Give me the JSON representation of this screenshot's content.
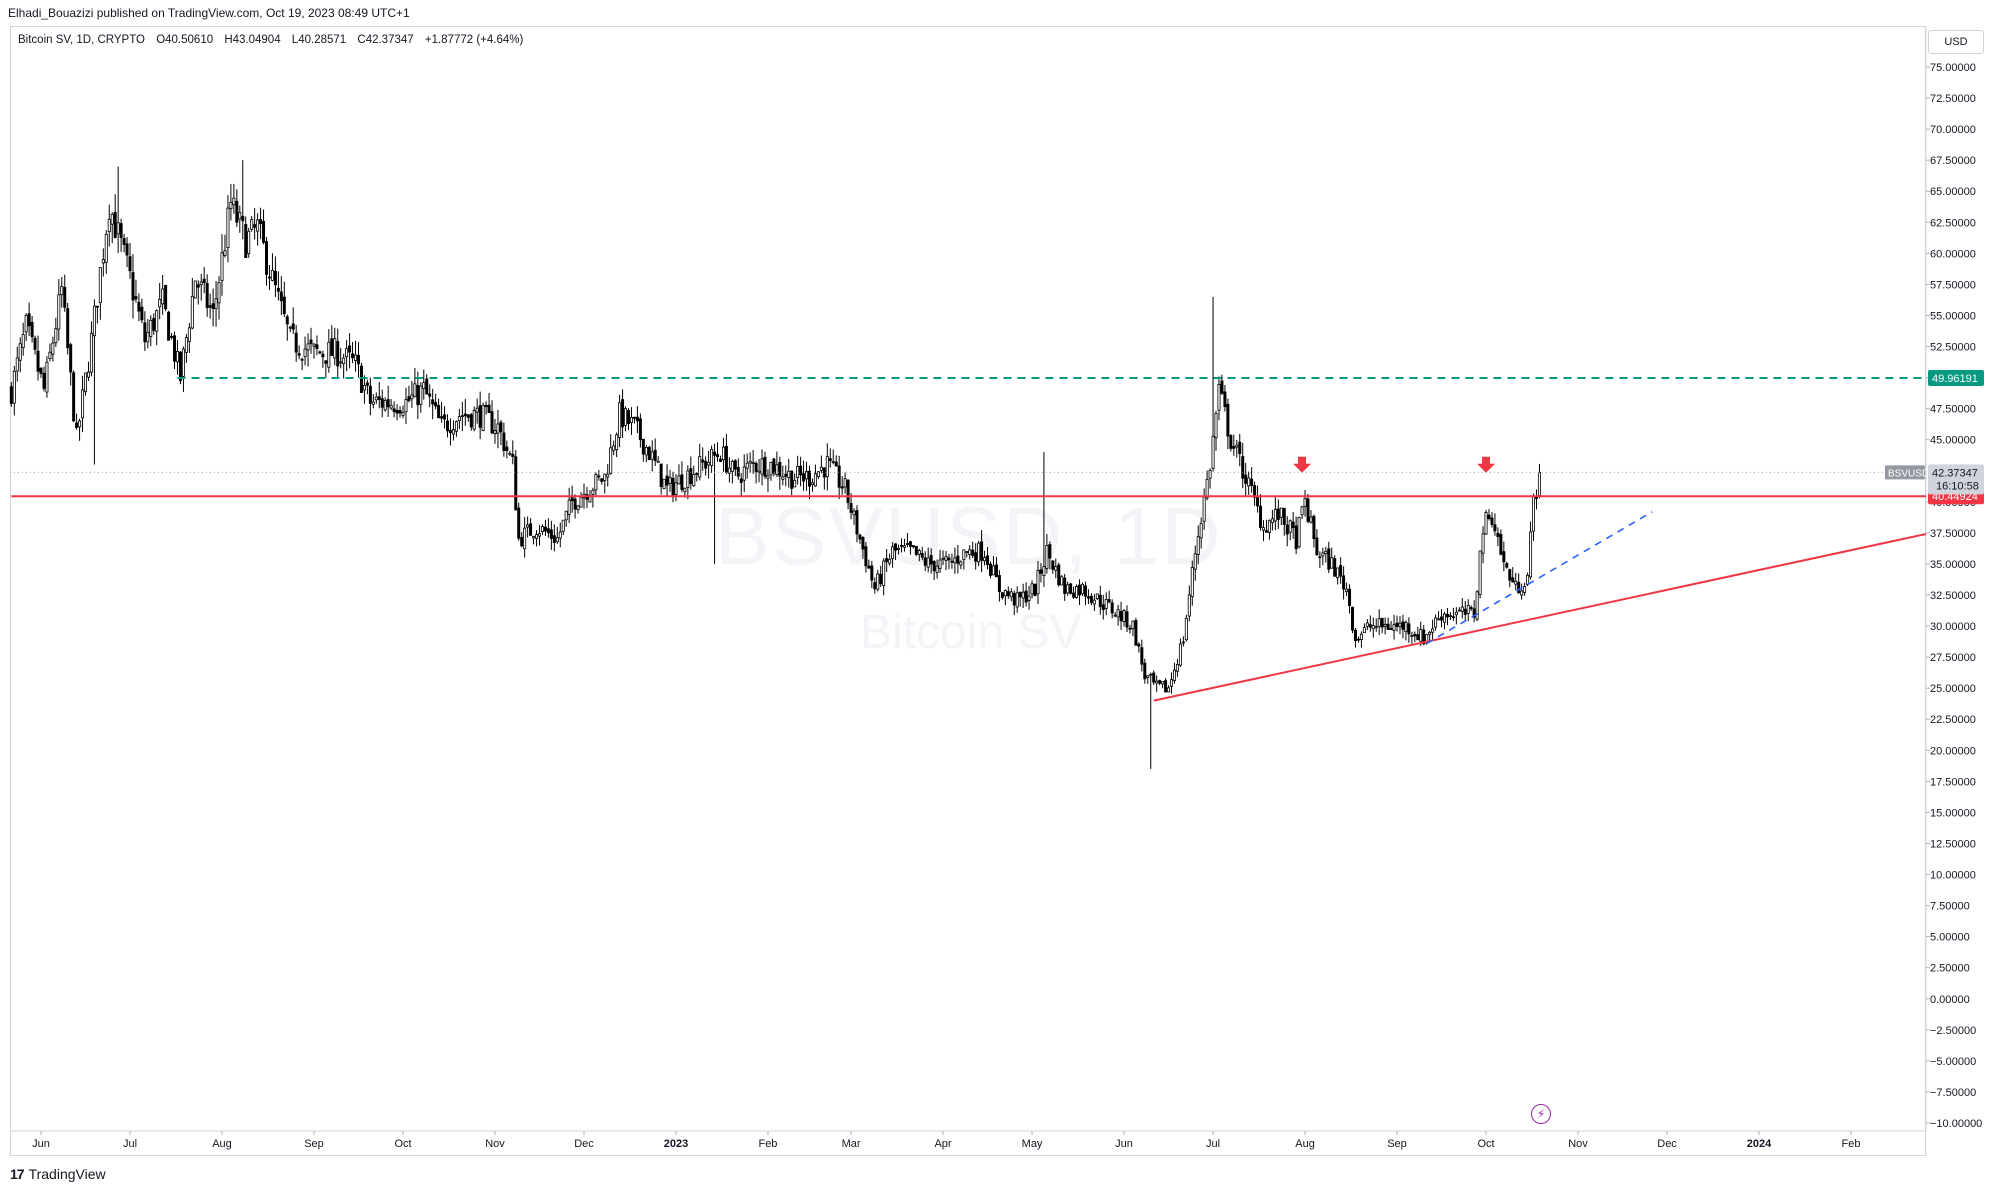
{
  "header": {
    "published_text": "Elhadi_Bouazizi published on TradingView.com, Oct 19, 2023 08:49 UTC+1"
  },
  "legend": {
    "symbol_title": "Bitcoin SV, 1D, CRYPTO",
    "open_label": "O",
    "open_value": "40.50610",
    "high_label": "H",
    "high_value": "43.04904",
    "low_label": "L",
    "low_value": "40.28571",
    "close_label": "C",
    "close_value": "42.37347",
    "change_text": "+1.87772 (+4.64%)"
  },
  "currency_label": "USD",
  "watermark": {
    "symbol": "BSVUSD, 1D",
    "name": "Bitcoin SV"
  },
  "footer": {
    "brand": "TradingView",
    "brand_mark": "17"
  },
  "colors": {
    "candle": "#000000",
    "horizontal_resistance": "#f23645",
    "trendline_support": "#f23645",
    "dashed_target": "#089981",
    "dashed_trend": "#2962ff",
    "arrow": "#f23645",
    "bolt": "#9c27b0"
  },
  "chart_data": {
    "type": "candlestick",
    "symbol": "BSVUSD",
    "interval": "1D",
    "y_axis": {
      "min": -10,
      "max": 77,
      "ticks": [
        "75.00000",
        "72.50000",
        "70.00000",
        "67.50000",
        "65.00000",
        "62.50000",
        "60.00000",
        "57.50000",
        "55.00000",
        "52.50000",
        "50.00000",
        "47.50000",
        "45.00000",
        "42.50000",
        "40.00000",
        "37.50000",
        "35.00000",
        "32.50000",
        "30.00000",
        "27.50000",
        "25.00000",
        "22.50000",
        "20.00000",
        "17.50000",
        "15.00000",
        "12.50000",
        "10.00000",
        "7.50000",
        "5.00000",
        "2.50000",
        "0.00000",
        "−2.50000",
        "−5.00000",
        "−7.50000",
        "−10.00000"
      ]
    },
    "x_axis": {
      "start": "2022-05-22",
      "end": "2024-02-28",
      "ticks": [
        {
          "label": "Jun",
          "date": "2022-06-01"
        },
        {
          "label": "Jul",
          "date": "2022-07-01"
        },
        {
          "label": "Aug",
          "date": "2022-08-01"
        },
        {
          "label": "Sep",
          "date": "2022-09-01"
        },
        {
          "label": "Oct",
          "date": "2022-10-01"
        },
        {
          "label": "Nov",
          "date": "2022-11-01"
        },
        {
          "label": "Dec",
          "date": "2022-12-01"
        },
        {
          "label": "2023",
          "date": "2023-01-01"
        },
        {
          "label": "Feb",
          "date": "2023-02-01"
        },
        {
          "label": "Mar",
          "date": "2023-03-01"
        },
        {
          "label": "Apr",
          "date": "2023-04-01"
        },
        {
          "label": "May",
          "date": "2023-05-01"
        },
        {
          "label": "Jun",
          "date": "2023-06-01"
        },
        {
          "label": "Jul",
          "date": "2023-07-01"
        },
        {
          "label": "Aug",
          "date": "2023-08-01"
        },
        {
          "label": "Sep",
          "date": "2023-09-01"
        },
        {
          "label": "Oct",
          "date": "2023-10-01"
        },
        {
          "label": "Nov",
          "date": "2023-11-01"
        },
        {
          "label": "Dec",
          "date": "2023-12-01"
        },
        {
          "label": "2024",
          "date": "2024-01-01"
        },
        {
          "label": "Feb",
          "date": "2024-02-01"
        }
      ]
    },
    "price_path": [
      [
        "2022-05-22",
        49
      ],
      [
        "2022-05-27",
        54
      ],
      [
        "2022-06-02",
        49
      ],
      [
        "2022-06-08",
        57
      ],
      [
        "2022-06-13",
        45
      ],
      [
        "2022-06-18",
        53
      ],
      [
        "2022-06-24",
        64
      ],
      [
        "2022-07-01",
        58
      ],
      [
        "2022-07-06",
        53
      ],
      [
        "2022-07-12",
        56
      ],
      [
        "2022-07-18",
        50
      ],
      [
        "2022-07-23",
        58
      ],
      [
        "2022-07-29",
        55
      ],
      [
        "2022-08-04",
        64
      ],
      [
        "2022-08-09",
        61
      ],
      [
        "2022-08-13",
        62
      ],
      [
        "2022-08-19",
        57
      ],
      [
        "2022-08-24",
        53
      ],
      [
        "2022-09-01",
        52
      ],
      [
        "2022-09-09",
        52
      ],
      [
        "2022-09-15",
        51
      ],
      [
        "2022-09-20",
        48
      ],
      [
        "2022-09-26",
        48
      ],
      [
        "2022-10-02",
        48
      ],
      [
        "2022-10-08",
        49
      ],
      [
        "2022-10-14",
        46
      ],
      [
        "2022-10-20",
        47
      ],
      [
        "2022-10-27",
        47
      ],
      [
        "2022-11-02",
        46
      ],
      [
        "2022-11-07",
        43
      ],
      [
        "2022-11-09",
        37
      ],
      [
        "2022-11-15",
        38
      ],
      [
        "2022-11-22",
        37
      ],
      [
        "2022-11-27",
        40
      ],
      [
        "2022-12-02",
        41
      ],
      [
        "2022-12-08",
        42
      ],
      [
        "2022-12-13",
        47
      ],
      [
        "2022-12-18",
        46
      ],
      [
        "2022-12-23",
        44
      ],
      [
        "2022-12-29",
        41
      ],
      [
        "2023-01-04",
        42
      ],
      [
        "2023-01-10",
        43
      ],
      [
        "2023-01-16",
        44
      ],
      [
        "2023-01-21",
        42
      ],
      [
        "2023-01-27",
        43
      ],
      [
        "2023-02-02",
        43
      ],
      [
        "2023-02-09",
        42
      ],
      [
        "2023-02-15",
        42
      ],
      [
        "2023-02-21",
        43
      ],
      [
        "2023-02-27",
        41
      ],
      [
        "2023-03-04",
        37
      ],
      [
        "2023-03-09",
        33
      ],
      [
        "2023-03-15",
        36
      ],
      [
        "2023-03-21",
        36
      ],
      [
        "2023-03-27",
        35
      ],
      [
        "2023-04-03",
        35
      ],
      [
        "2023-04-09",
        36
      ],
      [
        "2023-04-15",
        36
      ],
      [
        "2023-04-20",
        33
      ],
      [
        "2023-04-26",
        32
      ],
      [
        "2023-05-02",
        33
      ],
      [
        "2023-05-06",
        36
      ],
      [
        "2023-05-12",
        33
      ],
      [
        "2023-05-18",
        33
      ],
      [
        "2023-05-24",
        32
      ],
      [
        "2023-05-30",
        31
      ],
      [
        "2023-06-04",
        30
      ],
      [
        "2023-06-08",
        26
      ],
      [
        "2023-06-12",
        25
      ],
      [
        "2023-06-16",
        25
      ],
      [
        "2023-06-21",
        29
      ],
      [
        "2023-06-25",
        36
      ],
      [
        "2023-06-30",
        43
      ],
      [
        "2023-07-03",
        49
      ],
      [
        "2023-07-07",
        45
      ],
      [
        "2023-07-12",
        42
      ],
      [
        "2023-07-18",
        38
      ],
      [
        "2023-07-23",
        39
      ],
      [
        "2023-07-29",
        37
      ],
      [
        "2023-08-01",
        40
      ],
      [
        "2023-08-05",
        36
      ],
      [
        "2023-08-10",
        35
      ],
      [
        "2023-08-15",
        33
      ],
      [
        "2023-08-18",
        29
      ],
      [
        "2023-08-23",
        30
      ],
      [
        "2023-08-29",
        30
      ],
      [
        "2023-09-04",
        30
      ],
      [
        "2023-09-10",
        29
      ],
      [
        "2023-09-16",
        31
      ],
      [
        "2023-09-22",
        31
      ],
      [
        "2023-09-27",
        31
      ],
      [
        "2023-09-30",
        38
      ],
      [
        "2023-10-03",
        39
      ],
      [
        "2023-10-07",
        35
      ],
      [
        "2023-10-11",
        33
      ],
      [
        "2023-10-15",
        34
      ],
      [
        "2023-10-17",
        40
      ],
      [
        "2023-10-19",
        42.37
      ]
    ],
    "extremes": [
      {
        "date": "2022-06-19",
        "low": 43.0
      },
      {
        "date": "2022-06-27",
        "high": 67.0
      },
      {
        "date": "2022-08-08",
        "high": 67.5
      },
      {
        "date": "2023-06-10",
        "low": 18.5
      },
      {
        "date": "2023-07-01",
        "high": 56.5
      },
      {
        "date": "2023-05-05",
        "high": 44.0
      },
      {
        "date": "2023-01-14",
        "low": 35.0
      }
    ],
    "current_price": {
      "label": "BSVUSD",
      "value": "42.37347",
      "countdown": "16:10:58"
    },
    "horizontal_levels": [
      {
        "value": 49.96191,
        "label": "49.96191",
        "style": "dashed",
        "color": "#089981",
        "from": "2022-07-17"
      },
      {
        "value": 40.44924,
        "label": "40.44924",
        "style": "solid",
        "color": "#f23645",
        "from": "2022-05-22"
      }
    ],
    "trendlines": [
      {
        "style": "solid",
        "color": "#f23645",
        "from": [
          "2023-06-11",
          24.0
        ],
        "to": [
          "2024-02-28",
          37.5
        ]
      },
      {
        "style": "dashed",
        "color": "#2962ff",
        "from": [
          "2023-09-11",
          28.6
        ],
        "to": [
          "2023-11-26",
          39.2
        ]
      }
    ],
    "arrows": [
      {
        "date": "2023-07-31",
        "value": 42.5
      },
      {
        "date": "2023-10-01",
        "value": 42.5
      }
    ]
  }
}
